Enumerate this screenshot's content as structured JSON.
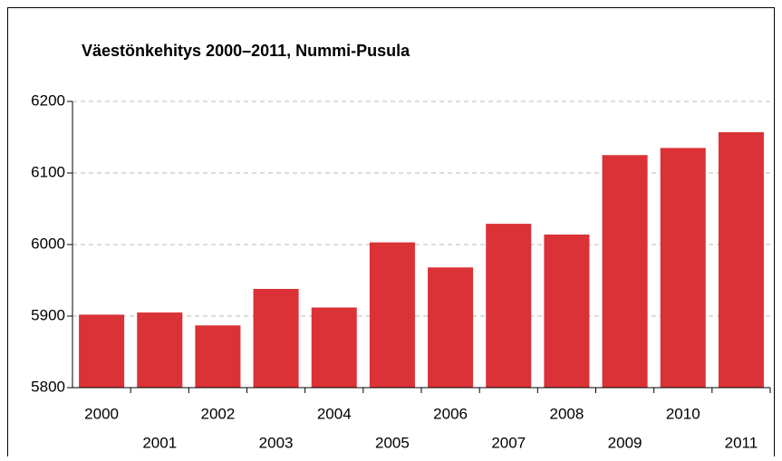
{
  "chart_data": {
    "type": "bar",
    "title": "Väestönkehitys 2000–2011, Nummi-Pusula",
    "categories": [
      "2000",
      "2001",
      "2002",
      "2003",
      "2004",
      "2005",
      "2006",
      "2007",
      "2008",
      "2009",
      "2010",
      "2011"
    ],
    "values": [
      5902,
      5905,
      5887,
      5938,
      5912,
      6003,
      5968,
      6029,
      6014,
      6125,
      6135,
      6157
    ],
    "color": "#db3237",
    "ylim": [
      5800,
      6200
    ],
    "yticks": [
      5800,
      5900,
      6000,
      6100,
      6200
    ],
    "grid": true
  }
}
